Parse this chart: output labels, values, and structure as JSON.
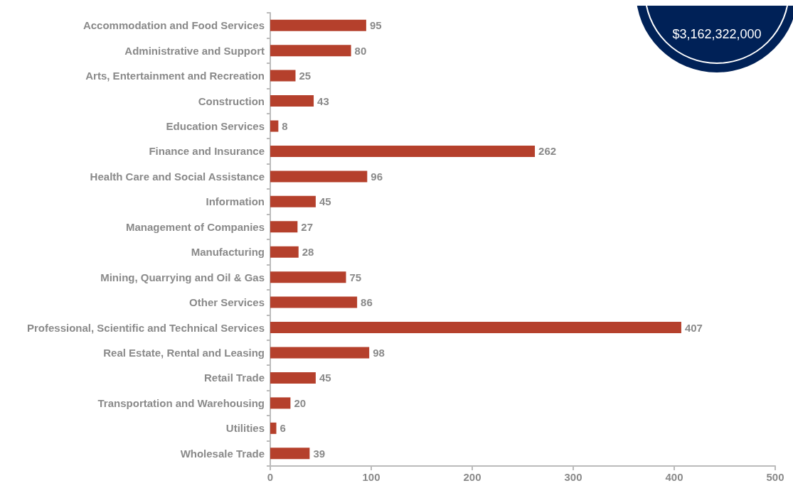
{
  "chart_data": {
    "type": "bar",
    "orientation": "horizontal",
    "categories": [
      "Accommodation and Food Services",
      "Administrative and Support",
      "Arts, Entertainment and Recreation",
      "Construction",
      "Education Services",
      "Finance and Insurance",
      "Health Care and Social Assistance",
      "Information",
      "Management of Companies",
      "Manufacturing",
      "Mining, Quarrying and Oil & Gas",
      "Other Services",
      "Professional, Scientific and Technical Services",
      "Real Estate, Rental and Leasing",
      "Retail Trade",
      "Transportation and Warehousing",
      "Utilities",
      "Wholesale Trade"
    ],
    "values": [
      95,
      80,
      25,
      43,
      8,
      262,
      96,
      45,
      27,
      28,
      75,
      86,
      407,
      98,
      45,
      20,
      6,
      39
    ],
    "color": "#b5402c",
    "data_labels": true,
    "xlim": [
      0,
      500
    ],
    "xticks": [
      0,
      100,
      200,
      300,
      400,
      500
    ],
    "grid": false,
    "annotations": [
      "$3,162,322,000"
    ]
  }
}
